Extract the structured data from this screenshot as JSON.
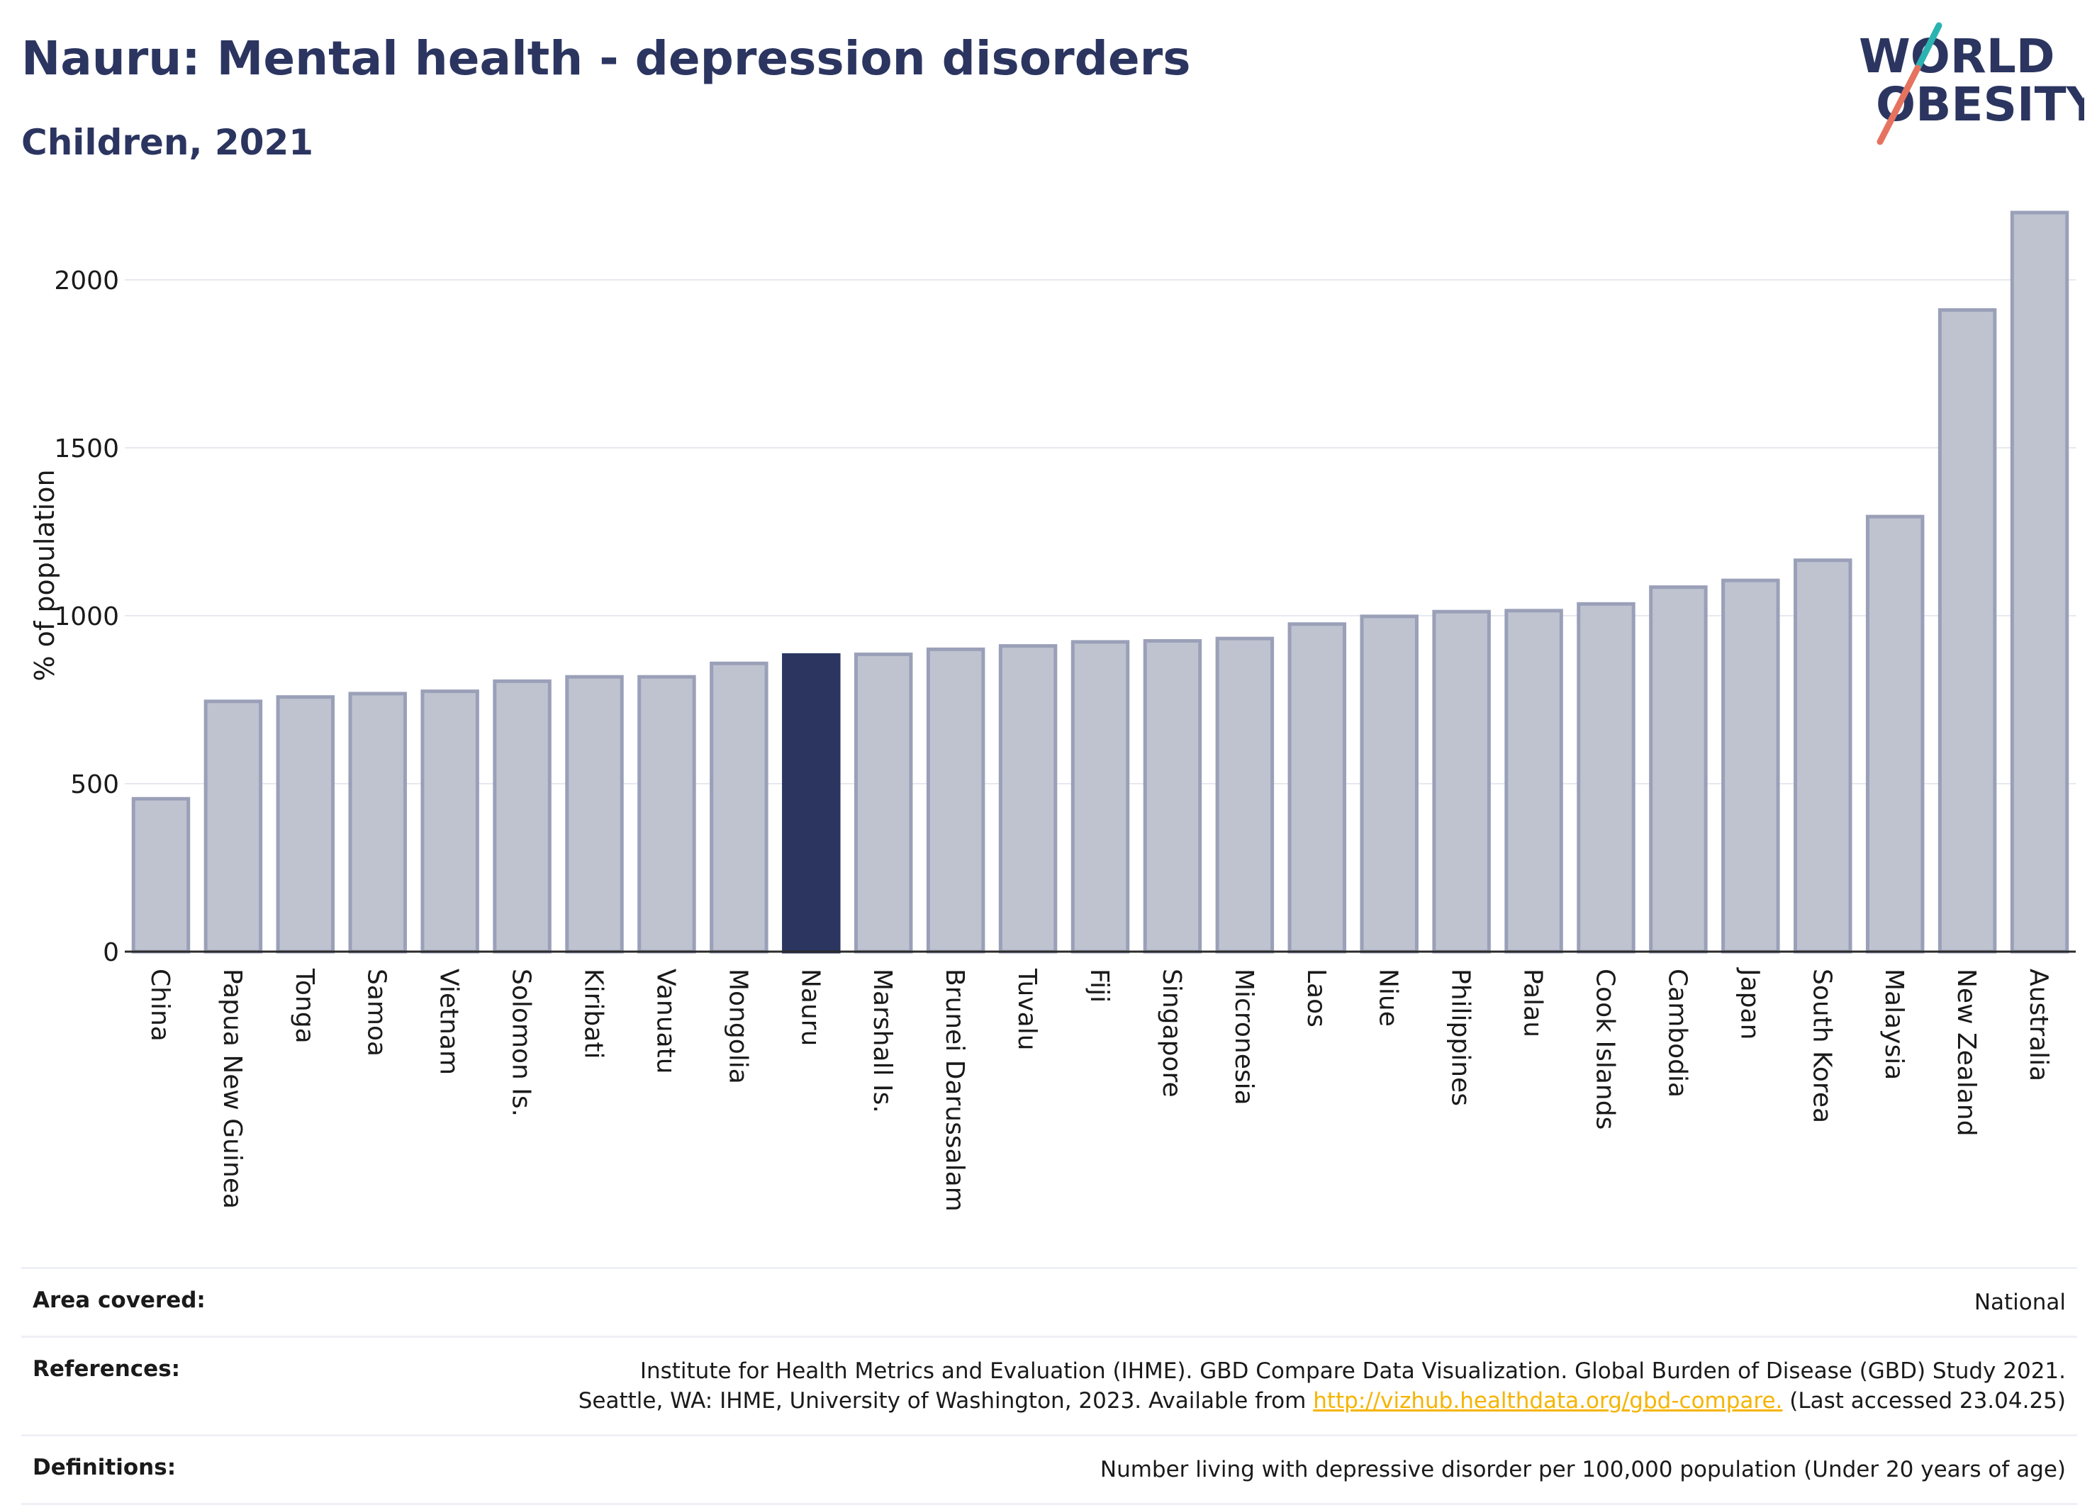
{
  "header": {
    "title": "Nauru: Mental health - depression disorders",
    "subtitle": "Children, 2021"
  },
  "logo": {
    "line1": "WORLD",
    "line2": "OBESITY",
    "colors": {
      "text": "#2b3560",
      "slash_teal": "#2ab3b0",
      "slash_coral": "#e5735f"
    }
  },
  "chart_data": {
    "type": "bar",
    "ylabel": "% of population",
    "xlabel": "",
    "ylim": [
      0,
      2200
    ],
    "yticks": [
      0,
      500,
      1000,
      1500,
      2000
    ],
    "grid": true,
    "highlight": "Nauru",
    "colors": {
      "bar": "#bfc3d0",
      "bar_edge": "#9aa0b8",
      "highlight": "#2b3560"
    },
    "categories": [
      "China",
      "Papua New Guinea",
      "Tonga",
      "Samoa",
      "Vietnam",
      "Solomon Is.",
      "Kiribati",
      "Vanuatu",
      "Mongolia",
      "Nauru",
      "Marshall Is.",
      "Brunei Darussalam",
      "Tuvalu",
      "Fiji",
      "Singapore",
      "Micronesia",
      "Laos",
      "Niue",
      "Philippines",
      "Palau",
      "Cook Islands",
      "Cambodia",
      "Japan",
      "South Korea",
      "Malaysia",
      "New Zealand",
      "Australia"
    ],
    "values": [
      455,
      745,
      758,
      768,
      775,
      805,
      818,
      818,
      858,
      883,
      885,
      900,
      910,
      922,
      925,
      932,
      975,
      998,
      1012,
      1015,
      1035,
      1085,
      1105,
      1165,
      1295,
      1910,
      2200
    ]
  },
  "footer": {
    "area_label": "Area covered:",
    "area_value": "National",
    "references_label": "References:",
    "references_line1": "Institute for Health Metrics and Evaluation (IHME). GBD Compare Data Visualization. Global Burden of Disease (GBD) Study 2021.",
    "references_line2_pre": "Seattle, WA: IHME, University of Washington, 2023. Available from ",
    "references_link": "http://vizhub.healthdata.org/gbd-compare.",
    "references_line2_post": " (Last accessed 23.04.25)",
    "definitions_label": "Definitions:",
    "definitions_value": "Number living with depressive disorder per 100,000 population (Under 20 years of age)"
  }
}
